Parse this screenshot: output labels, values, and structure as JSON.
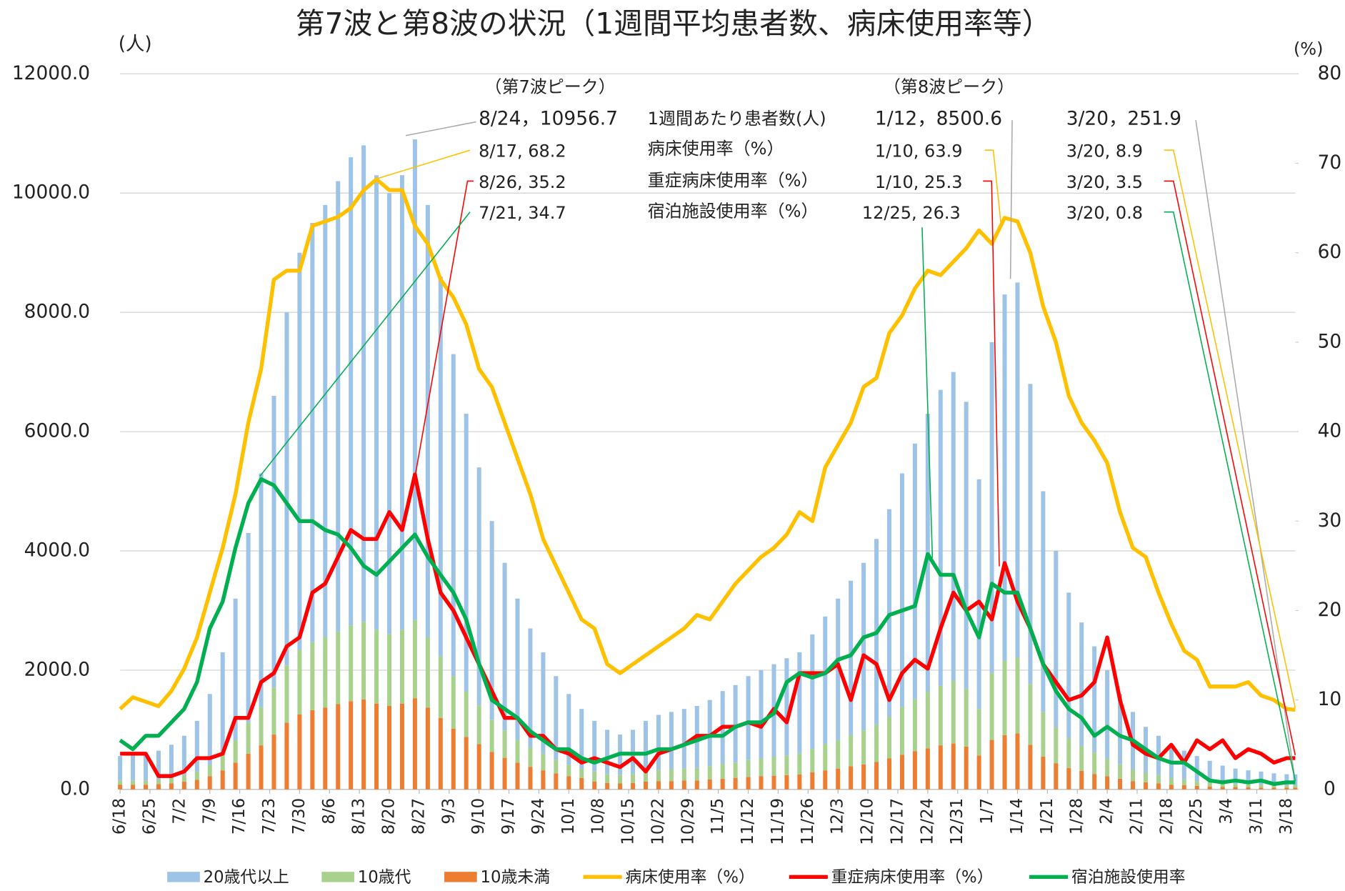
{
  "chart_data": {
    "type": "stacked-bar-line",
    "title": "第7波と第8波の状況（1週間平均患者数、病床使用率等）",
    "y_label": "(人)",
    "y2_label": "(%)",
    "x": [
      0,
      3,
      6,
      9,
      12,
      15,
      18,
      21,
      24,
      27,
      30,
      33,
      36,
      39,
      42,
      45,
      48,
      51,
      54,
      57,
      60,
      63,
      66,
      69,
      72,
      75,
      78,
      81,
      84,
      87,
      90,
      93,
      96,
      99,
      102,
      105,
      108,
      111,
      114,
      117,
      120,
      123,
      126,
      129,
      132,
      135,
      138,
      141,
      144,
      147,
      150,
      153,
      156,
      159,
      162,
      165,
      168,
      171,
      174,
      177,
      180,
      183,
      186,
      189,
      192,
      195,
      198,
      201,
      204,
      207,
      210,
      213,
      216,
      219,
      222,
      225,
      228,
      231,
      234,
      237,
      240,
      243,
      246,
      249,
      252,
      255,
      258,
      261,
      264,
      267,
      270,
      273,
      275
    ],
    "xlim": [
      0,
      275
    ],
    "xticks": [
      {
        "value": 0,
        "label": "6/18"
      },
      {
        "value": 7,
        "label": "6/25"
      },
      {
        "value": 14,
        "label": "7/2"
      },
      {
        "value": 21,
        "label": "7/9"
      },
      {
        "value": 28,
        "label": "7/16"
      },
      {
        "value": 35,
        "label": "7/23"
      },
      {
        "value": 42,
        "label": "7/30"
      },
      {
        "value": 49,
        "label": "8/6"
      },
      {
        "value": 56,
        "label": "8/13"
      },
      {
        "value": 63,
        "label": "8/20"
      },
      {
        "value": 70,
        "label": "8/27"
      },
      {
        "value": 77,
        "label": "9/3"
      },
      {
        "value": 84,
        "label": "9/10"
      },
      {
        "value": 91,
        "label": "9/17"
      },
      {
        "value": 98,
        "label": "9/24"
      },
      {
        "value": 105,
        "label": "10/1"
      },
      {
        "value": 112,
        "label": "10/8"
      },
      {
        "value": 119,
        "label": "10/15"
      },
      {
        "value": 126,
        "label": "10/22"
      },
      {
        "value": 133,
        "label": "10/29"
      },
      {
        "value": 140,
        "label": "11/5"
      },
      {
        "value": 147,
        "label": "11/12"
      },
      {
        "value": 154,
        "label": "11/19"
      },
      {
        "value": 161,
        "label": "11/26"
      },
      {
        "value": 168,
        "label": "12/3"
      },
      {
        "value": 175,
        "label": "12/10"
      },
      {
        "value": 182,
        "label": "12/17"
      },
      {
        "value": 189,
        "label": "12/24"
      },
      {
        "value": 196,
        "label": "12/31"
      },
      {
        "value": 203,
        "label": "1/7"
      },
      {
        "value": 210,
        "label": "1/14"
      },
      {
        "value": 217,
        "label": "1/21"
      },
      {
        "value": 224,
        "label": "1/28"
      },
      {
        "value": 231,
        "label": "2/4"
      },
      {
        "value": 238,
        "label": "2/11"
      },
      {
        "value": 245,
        "label": "2/18"
      },
      {
        "value": 252,
        "label": "2/25"
      },
      {
        "value": 259,
        "label": "3/4"
      },
      {
        "value": 266,
        "label": "3/11"
      },
      {
        "value": 273,
        "label": "3/18"
      }
    ],
    "ylim": [
      0,
      12000
    ],
    "yticks": [
      {
        "value": 0,
        "label": "0.0"
      },
      {
        "value": 2000,
        "label": "2000.0"
      },
      {
        "value": 4000,
        "label": "4000.0"
      },
      {
        "value": 6000,
        "label": "6000.0"
      },
      {
        "value": 8000,
        "label": "8000.0"
      },
      {
        "value": 10000,
        "label": "10000.0"
      },
      {
        "value": 12000,
        "label": "12000.0"
      }
    ],
    "y2lim": [
      0,
      80
    ],
    "y2ticks": [
      0,
      10,
      20,
      30,
      40,
      50,
      60,
      70,
      80
    ],
    "grid": true,
    "series": [
      {
        "name": "20歳代以上",
        "kind": "bar",
        "color": "#9dc3e6",
        "values": [
          410,
          430,
          450,
          480,
          560,
          660,
          850,
          1190,
          1700,
          2370,
          3180,
          3920,
          4890,
          5920,
          6660,
          7030,
          7250,
          7550,
          7850,
          7990,
          7620,
          7400,
          7620,
          8060,
          7250,
          6370,
          5400,
          4660,
          3990,
          3330,
          2810,
          2370,
          2000,
          1700,
          1400,
          1190,
          1000,
          850,
          740,
          680,
          740,
          850,
          920,
          960,
          1000,
          1040,
          1110,
          1220,
          1300,
          1400,
          1480,
          1550,
          1630,
          1700,
          1920,
          2140,
          2370,
          2590,
          2810,
          3110,
          3480,
          3920,
          4290,
          4660,
          4960,
          5180,
          4810,
          3850,
          5550,
          6140,
          6290,
          5030,
          3700,
          2960,
          2440,
          2070,
          1780,
          1480,
          1180,
          960,
          770,
          660,
          560,
          480,
          420,
          360,
          300,
          260,
          235,
          225,
          200,
          185,
          182
        ]
      },
      {
        "name": "10歳代",
        "kind": "bar",
        "color": "#a9d18e",
        "values": [
          70,
          70,
          70,
          80,
          90,
          110,
          140,
          190,
          280,
          380,
          520,
          640,
          790,
          960,
          1080,
          1140,
          1180,
          1220,
          1270,
          1300,
          1240,
          1200,
          1240,
          1310,
          1180,
          1030,
          880,
          760,
          650,
          540,
          460,
          380,
          320,
          280,
          230,
          190,
          160,
          170,
          150,
          140,
          150,
          170,
          190,
          200,
          200,
          210,
          220,
          250,
          260,
          290,
          300,
          320,
          330,
          350,
          390,
          440,
          480,
          520,
          570,
          630,
          700,
          800,
          870,
          950,
          1000,
          1050,
          970,
          780,
          1120,
          1250,
          1270,
          1020,
          750,
          600,
          500,
          420,
          360,
          300,
          240,
          200,
          160,
          140,
          110,
          100,
          80,
          70,
          60,
          50,
          50,
          45,
          40,
          40,
          40
        ]
      },
      {
        "name": "10歳未満",
        "kind": "bar",
        "color": "#ed7d31",
        "values": [
          80,
          80,
          80,
          90,
          100,
          130,
          160,
          220,
          320,
          450,
          600,
          740,
          920,
          1120,
          1260,
          1330,
          1370,
          1430,
          1480,
          1510,
          1440,
          1400,
          1440,
          1530,
          1370,
          1200,
          1020,
          880,
          760,
          630,
          530,
          450,
          380,
          320,
          270,
          220,
          190,
          130,
          110,
          100,
          110,
          130,
          140,
          140,
          150,
          150,
          170,
          180,
          190,
          210,
          220,
          230,
          240,
          250,
          290,
          320,
          350,
          390,
          420,
          460,
          520,
          580,
          640,
          690,
          740,
          770,
          720,
          570,
          830,
          910,
          940,
          750,
          550,
          440,
          360,
          310,
          260,
          220,
          180,
          140,
          120,
          100,
          80,
          70,
          60,
          50,
          40,
          40,
          35,
          30,
          30,
          30,
          30
        ]
      },
      {
        "name": "病床使用率（%）",
        "kind": "line",
        "axis": "y2",
        "color": "#ffc000",
        "values": [
          9.0,
          10.3,
          9.8,
          9.3,
          11,
          13.5,
          17,
          22,
          27,
          33,
          41,
          47,
          57,
          58,
          58,
          63,
          63.5,
          64,
          65,
          67,
          68.2,
          67,
          67,
          63,
          61,
          57,
          55,
          52,
          47,
          45,
          41,
          37,
          33,
          28,
          25,
          22,
          19,
          18,
          14,
          13,
          14,
          15,
          16,
          17,
          18,
          19.5,
          19,
          21,
          23,
          24.5,
          26,
          27,
          28.5,
          31,
          30,
          36,
          38.5,
          41,
          45,
          46,
          51,
          53,
          56,
          58,
          57.5,
          59,
          60.5,
          62.5,
          61,
          63.9,
          63.5,
          60,
          54,
          50,
          44,
          41,
          39,
          36.5,
          31,
          27,
          26,
          22,
          18.5,
          15.5,
          14.5,
          11.5,
          11.5,
          11.5,
          12,
          10.5,
          10,
          9,
          8.9
        ]
      },
      {
        "name": "重症病床使用率（%）",
        "kind": "line",
        "axis": "y2",
        "color": "#ff0000",
        "values": [
          4,
          4,
          4,
          1.5,
          1.5,
          2,
          3.5,
          3.5,
          4,
          8,
          8,
          12,
          13,
          16,
          17,
          22,
          23,
          26,
          29,
          28,
          28,
          31,
          29,
          35.2,
          28,
          22,
          20,
          17,
          14,
          11,
          8,
          8,
          6,
          6,
          4.5,
          4,
          3,
          3.5,
          3,
          2.5,
          3.5,
          2,
          4,
          4.5,
          5,
          6,
          6,
          7,
          7,
          7.5,
          7,
          9,
          7.5,
          13,
          13,
          13,
          14,
          10,
          15,
          14,
          10,
          13,
          14.5,
          13.5,
          18,
          22,
          20,
          21,
          19,
          25.3,
          21,
          18,
          14,
          12,
          10,
          10.5,
          12,
          17,
          10,
          5,
          4,
          3.5,
          5,
          3,
          5.5,
          4.5,
          5.5,
          3.5,
          4.5,
          4,
          3,
          3.5,
          3.5
        ]
      },
      {
        "name": "宿泊施設使用率",
        "kind": "line",
        "axis": "y2",
        "color": "#00b050",
        "values": [
          5.5,
          4.5,
          6,
          6,
          7.5,
          9,
          12,
          18,
          21,
          27,
          32,
          34.7,
          34,
          32,
          30,
          30,
          29,
          28.5,
          27,
          25,
          24,
          25.5,
          27,
          28.5,
          26,
          24,
          22,
          19,
          14,
          10,
          9,
          8,
          6.5,
          5.5,
          4.5,
          4.5,
          3.5,
          3,
          3.5,
          4,
          4,
          4,
          4.5,
          4.5,
          5,
          5.5,
          6,
          6,
          7,
          7.5,
          7.5,
          8.5,
          12,
          13,
          12.5,
          13,
          14.5,
          15,
          17,
          17.5,
          19.5,
          20,
          20.5,
          26.3,
          24,
          24,
          20,
          17,
          23,
          22,
          22,
          18,
          14,
          11,
          9,
          8,
          6,
          7,
          6,
          5.5,
          4.5,
          3.5,
          3,
          3,
          2,
          1,
          0.8,
          1,
          0.8,
          1,
          0.6,
          0.8,
          0.8
        ]
      }
    ],
    "annotations": [
      "（第7波ピーク）",
      "8/24，10956.7",
      "8/17, 68.2",
      "8/26, 35.2",
      "7/21, 34.7",
      "1週間あたり患者数(人)",
      "病床使用率（%）",
      "重症病床使用率（%）",
      "宿泊施設使用率（%）",
      "（第8波ピーク）",
      "1/12，8500.6",
      "1/10, 63.9",
      "1/10, 25.3",
      "12/25, 26.3",
      "3/20，251.9",
      "3/20, 8.9",
      "3/20, 3.5",
      "3/20, 0.8"
    ]
  }
}
